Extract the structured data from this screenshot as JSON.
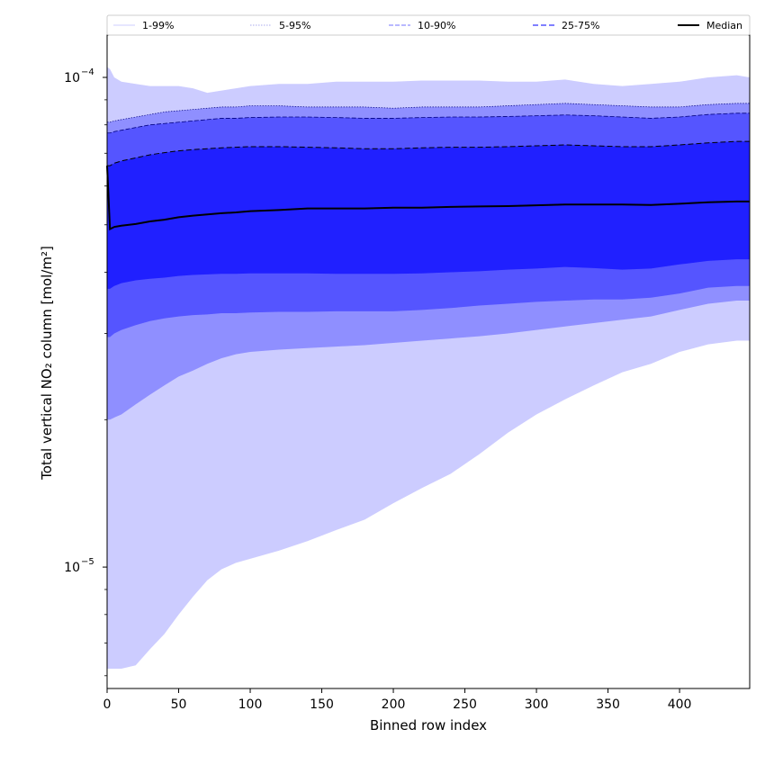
{
  "chart_data": {
    "type": "area",
    "xlabel": "Binned row index",
    "ylabel": "Total vertical NO₂ column [mol/m²]",
    "x_scale": "linear",
    "y_scale": "log",
    "xlim": [
      0,
      449
    ],
    "ylim": [
      5.65e-06,
      0.000122
    ],
    "x_ticks": [
      0,
      50,
      100,
      150,
      200,
      250,
      300,
      350,
      400
    ],
    "x_tick_labels": [
      "0",
      "50",
      "100",
      "150",
      "200",
      "250",
      "300",
      "350",
      "400"
    ],
    "y_ticks": [
      1e-05,
      0.0001
    ],
    "y_tick_labels": [
      {
        "base": "10",
        "exp": "−5"
      },
      {
        "base": "10",
        "exp": "−4"
      }
    ],
    "grid": false,
    "legend_position": "top",
    "legend": [
      "1-99%",
      "5-95%",
      "10-90%",
      "25-75%",
      "Median"
    ],
    "x": [
      0,
      2,
      5,
      10,
      20,
      30,
      40,
      50,
      60,
      70,
      80,
      90,
      100,
      120,
      140,
      160,
      180,
      200,
      220,
      240,
      260,
      280,
      300,
      320,
      340,
      360,
      380,
      400,
      420,
      440,
      449
    ],
    "series": [
      {
        "name": "1-99%",
        "color": "#ccccff",
        "lower": [
          6.2e-06,
          6.2e-06,
          6.2e-06,
          6.2e-06,
          6.3e-06,
          6.8e-06,
          7.3e-06,
          8e-06,
          8.7e-06,
          9.4e-06,
          9.9e-06,
          1.02e-05,
          1.04e-05,
          1.08e-05,
          1.13e-05,
          1.19e-05,
          1.25e-05,
          1.35e-05,
          1.45e-05,
          1.55e-05,
          1.7e-05,
          1.88e-05,
          2.05e-05,
          2.2e-05,
          2.35e-05,
          2.5e-05,
          2.6e-05,
          2.75e-05,
          2.85e-05,
          2.9e-05,
          2.9e-05
        ],
        "upper": [
          0.000105,
          0.000104,
          0.0001,
          9.8e-05,
          9.7e-05,
          9.6e-05,
          9.6e-05,
          9.6e-05,
          9.5e-05,
          9.3e-05,
          9.4e-05,
          9.5e-05,
          9.6e-05,
          9.7e-05,
          9.7e-05,
          9.8e-05,
          9.8e-05,
          9.8e-05,
          9.85e-05,
          9.85e-05,
          9.85e-05,
          9.8e-05,
          9.8e-05,
          9.9e-05,
          9.7e-05,
          9.6e-05,
          9.7e-05,
          9.8e-05,
          0.0001,
          0.000101,
          0.0001
        ]
      },
      {
        "name": "5-95%",
        "color": "#8f8fff",
        "lower": [
          2e-05,
          2e-05,
          2.02e-05,
          2.05e-05,
          2.15e-05,
          2.25e-05,
          2.35e-05,
          2.45e-05,
          2.52e-05,
          2.6e-05,
          2.67e-05,
          2.72e-05,
          2.75e-05,
          2.78e-05,
          2.8e-05,
          2.82e-05,
          2.84e-05,
          2.87e-05,
          2.9e-05,
          2.93e-05,
          2.96e-05,
          3e-05,
          3.05e-05,
          3.1e-05,
          3.15e-05,
          3.2e-05,
          3.25e-05,
          3.35e-05,
          3.45e-05,
          3.5e-05,
          3.5e-05
        ],
        "upper": [
          8.1e-05,
          8.1e-05,
          8.15e-05,
          8.2e-05,
          8.3e-05,
          8.4e-05,
          8.5e-05,
          8.55e-05,
          8.6e-05,
          8.65e-05,
          8.7e-05,
          8.7e-05,
          8.75e-05,
          8.75e-05,
          8.7e-05,
          8.7e-05,
          8.7e-05,
          8.65e-05,
          8.7e-05,
          8.7e-05,
          8.7e-05,
          8.75e-05,
          8.8e-05,
          8.85e-05,
          8.8e-05,
          8.75e-05,
          8.7e-05,
          8.7e-05,
          8.8e-05,
          8.85e-05,
          8.85e-05
        ]
      },
      {
        "name": "10-90%",
        "color": "#5555ff",
        "lower": [
          2.95e-05,
          2.95e-05,
          3e-05,
          3.05e-05,
          3.12e-05,
          3.18e-05,
          3.22e-05,
          3.25e-05,
          3.27e-05,
          3.28e-05,
          3.3e-05,
          3.3e-05,
          3.31e-05,
          3.32e-05,
          3.32e-05,
          3.33e-05,
          3.33e-05,
          3.33e-05,
          3.35e-05,
          3.38e-05,
          3.42e-05,
          3.45e-05,
          3.48e-05,
          3.5e-05,
          3.52e-05,
          3.52e-05,
          3.55e-05,
          3.62e-05,
          3.72e-05,
          3.75e-05,
          3.75e-05
        ],
        "upper": [
          7.7e-05,
          7.7e-05,
          7.75e-05,
          7.8e-05,
          7.9e-05,
          8e-05,
          8.05e-05,
          8.1e-05,
          8.15e-05,
          8.2e-05,
          8.25e-05,
          8.25e-05,
          8.28e-05,
          8.3e-05,
          8.3e-05,
          8.28e-05,
          8.25e-05,
          8.25e-05,
          8.28e-05,
          8.3e-05,
          8.3e-05,
          8.32e-05,
          8.35e-05,
          8.38e-05,
          8.35e-05,
          8.3e-05,
          8.25e-05,
          8.3e-05,
          8.4e-05,
          8.45e-05,
          8.45e-05
        ]
      },
      {
        "name": "25-75%",
        "color": "#2020ff",
        "lower": [
          3.7e-05,
          3.7e-05,
          3.75e-05,
          3.8e-05,
          3.85e-05,
          3.88e-05,
          3.9e-05,
          3.93e-05,
          3.95e-05,
          3.96e-05,
          3.97e-05,
          3.97e-05,
          3.98e-05,
          3.98e-05,
          3.98e-05,
          3.97e-05,
          3.97e-05,
          3.97e-05,
          3.98e-05,
          4e-05,
          4.02e-05,
          4.05e-05,
          4.07e-05,
          4.1e-05,
          4.08e-05,
          4.05e-05,
          4.07e-05,
          4.15e-05,
          4.22e-05,
          4.25e-05,
          4.25e-05
        ],
        "upper": [
          6.6e-05,
          6.6e-05,
          6.68e-05,
          6.75e-05,
          6.85e-05,
          6.95e-05,
          7.02e-05,
          7.08e-05,
          7.12e-05,
          7.15e-05,
          7.18e-05,
          7.2e-05,
          7.22e-05,
          7.22e-05,
          7.2e-05,
          7.18e-05,
          7.15e-05,
          7.15e-05,
          7.18e-05,
          7.2e-05,
          7.2e-05,
          7.22e-05,
          7.25e-05,
          7.28e-05,
          7.25e-05,
          7.22e-05,
          7.22e-05,
          7.28e-05,
          7.35e-05,
          7.4e-05,
          7.4e-05
        ]
      },
      {
        "name": "Median",
        "color": "#000000",
        "values": [
          6.6e-05,
          4.9e-05,
          4.95e-05,
          4.98e-05,
          5.02e-05,
          5.08e-05,
          5.12e-05,
          5.18e-05,
          5.22e-05,
          5.25e-05,
          5.28e-05,
          5.3e-05,
          5.33e-05,
          5.36e-05,
          5.4e-05,
          5.4e-05,
          5.4e-05,
          5.42e-05,
          5.42e-05,
          5.44e-05,
          5.45e-05,
          5.46e-05,
          5.48e-05,
          5.5e-05,
          5.5e-05,
          5.5e-05,
          5.49e-05,
          5.52e-05,
          5.56e-05,
          5.58e-05,
          5.58e-05
        ]
      }
    ]
  }
}
